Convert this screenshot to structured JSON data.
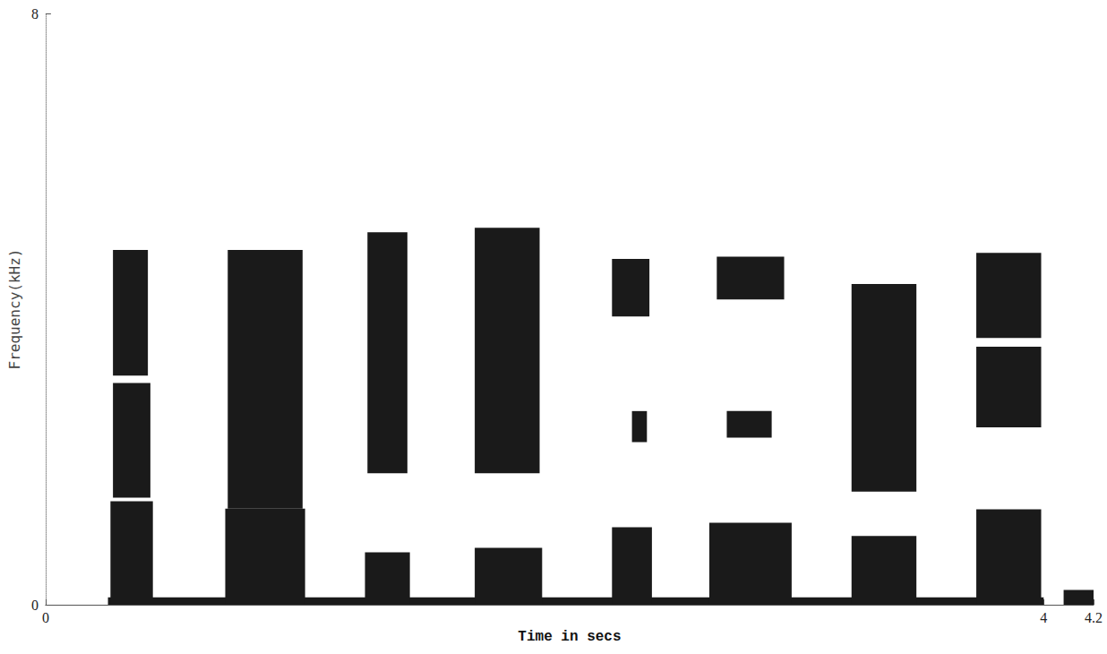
{
  "chart_data": {
    "type": "spectrogram",
    "x_label": "Time in secs",
    "y_label": "Frequency(kHz)",
    "xlim": [
      0,
      4.2
    ],
    "xticks": [
      0,
      4
    ],
    "ylim": [
      0,
      8
    ],
    "yticks": [
      0,
      8
    ],
    "grid": false,
    "color": "#1a1a1a",
    "segments": [
      {
        "t": [
          0.25,
          4.0
        ],
        "f": [
          0,
          0.1
        ]
      },
      {
        "t": [
          0.26,
          0.43
        ],
        "f": [
          0,
          1.4
        ]
      },
      {
        "t": [
          0.27,
          0.42
        ],
        "f": [
          1.45,
          3.0
        ]
      },
      {
        "t": [
          0.27,
          0.41
        ],
        "f": [
          3.1,
          4.8
        ]
      },
      {
        "t": [
          0.72,
          1.04
        ],
        "f": [
          0,
          1.3
        ]
      },
      {
        "t": [
          0.73,
          1.03
        ],
        "f": [
          1.3,
          4.8
        ]
      },
      {
        "t": [
          1.28,
          1.46
        ],
        "f": [
          0,
          0.71
        ]
      },
      {
        "t": [
          1.29,
          1.45
        ],
        "f": [
          1.78,
          5.04
        ]
      },
      {
        "t": [
          1.72,
          1.99
        ],
        "f": [
          0,
          0.77
        ]
      },
      {
        "t": [
          1.72,
          1.98
        ],
        "f": [
          1.78,
          5.1
        ]
      },
      {
        "t": [
          2.27,
          2.43
        ],
        "f": [
          0,
          1.05
        ]
      },
      {
        "t": [
          2.27,
          2.42
        ],
        "f": [
          3.9,
          4.68
        ]
      },
      {
        "t": [
          2.35,
          2.41
        ],
        "f": [
          2.2,
          2.62
        ]
      },
      {
        "t": [
          2.66,
          2.99
        ],
        "f": [
          0,
          1.11
        ]
      },
      {
        "t": [
          2.69,
          2.96
        ],
        "f": [
          4.13,
          4.71
        ]
      },
      {
        "t": [
          2.73,
          2.91
        ],
        "f": [
          2.26,
          2.62
        ]
      },
      {
        "t": [
          3.23,
          3.49
        ],
        "f": [
          0,
          0.93
        ]
      },
      {
        "t": [
          3.23,
          3.49
        ],
        "f": [
          1.53,
          4.34
        ]
      },
      {
        "t": [
          3.73,
          3.99
        ],
        "f": [
          0,
          1.29
        ]
      },
      {
        "t": [
          3.73,
          3.99
        ],
        "f": [
          2.4,
          3.49
        ]
      },
      {
        "t": [
          3.73,
          3.99
        ],
        "f": [
          3.61,
          4.76
        ]
      },
      {
        "t": [
          4.08,
          4.2
        ],
        "f": [
          0,
          0.2
        ]
      }
    ]
  }
}
